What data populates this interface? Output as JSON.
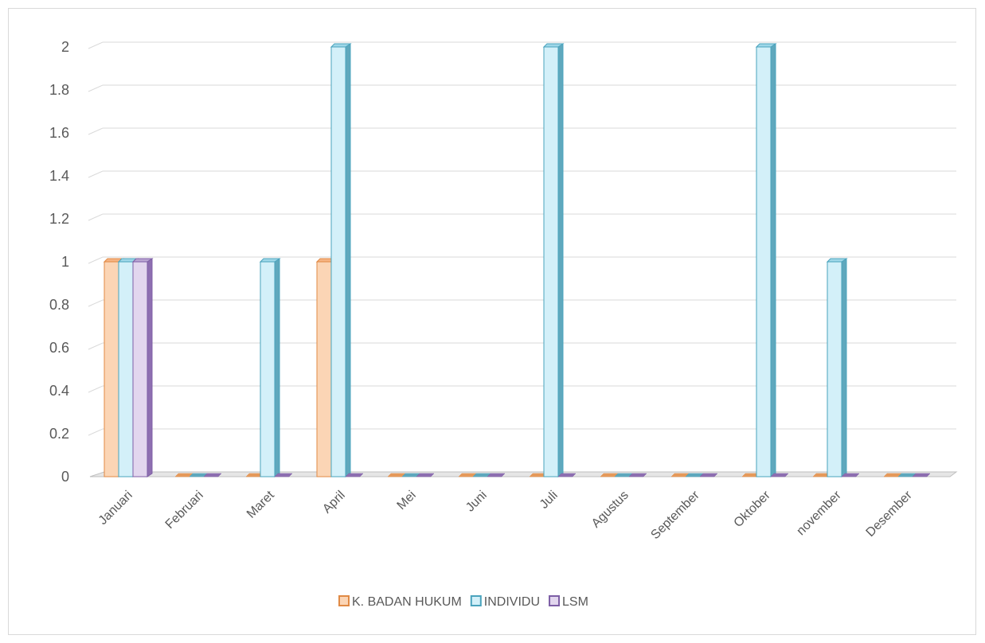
{
  "chart_data": {
    "type": "bar",
    "categories": [
      "Januari",
      "Februari",
      "Maret",
      "April",
      "Mei",
      "Juni",
      "Juli",
      "Agustus",
      "September",
      "Oktober",
      "november",
      "Desember"
    ],
    "series": [
      {
        "name": "K. BADAN HUKUM",
        "values": [
          1,
          0,
          0,
          1,
          0,
          0,
          0,
          0,
          0,
          0,
          0,
          0
        ]
      },
      {
        "name": "INDIVIDU",
        "values": [
          1,
          0,
          1,
          2,
          0,
          0,
          2,
          0,
          0,
          2,
          1,
          0
        ]
      },
      {
        "name": "LSM",
        "values": [
          1,
          0,
          0,
          0,
          0,
          0,
          0,
          0,
          0,
          0,
          0,
          0
        ]
      }
    ],
    "yticks": [
      "0",
      "0.2",
      "0.4",
      "0.6",
      "0.8",
      "1",
      "1.2",
      "1.4",
      "1.6",
      "1.8",
      "2"
    ],
    "ylim": [
      0,
      2
    ],
    "grid": true,
    "legend_position": "bottom",
    "colors": {
      "K. BADAN HUKUM": {
        "front": "#fbd5b5",
        "side": "#e59a5c",
        "top": "#f6b381",
        "edge": "#e08a45"
      },
      "INDIVIDU": {
        "front": "#d3f0f9",
        "side": "#5fa8bd",
        "top": "#9ed7e8",
        "edge": "#4aa3bd"
      },
      "LSM": {
        "front": "#e2d6ee",
        "side": "#8e6fb1",
        "top": "#b9a4d2",
        "edge": "#7d5ea5"
      }
    }
  }
}
